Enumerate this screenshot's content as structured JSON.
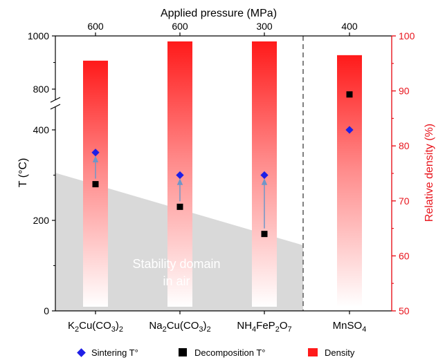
{
  "chart_data": {
    "type": "bar",
    "top_axis_title": "Applied pressure (MPa)",
    "left_axis_title": "T (°C)",
    "right_axis_title": "Relative density (%)",
    "categories": [
      "K2Cu(CO3)2",
      "Na2Cu(CO3)2",
      "NH4FeP2O7",
      "MnSO4"
    ],
    "category_labels": [
      [
        {
          "t": "K"
        },
        {
          "t": "2",
          "sub": true
        },
        {
          "t": "Cu(CO"
        },
        {
          "t": "3",
          "sub": true
        },
        {
          "t": ")"
        },
        {
          "t": "2",
          "sub": true
        }
      ],
      [
        {
          "t": "Na"
        },
        {
          "t": "2",
          "sub": true
        },
        {
          "t": "Cu(CO"
        },
        {
          "t": "3",
          "sub": true
        },
        {
          "t": ")"
        },
        {
          "t": "2",
          "sub": true
        }
      ],
      [
        {
          "t": "NH"
        },
        {
          "t": "4",
          "sub": true
        },
        {
          "t": "FeP"
        },
        {
          "t": "2",
          "sub": true
        },
        {
          "t": "O"
        },
        {
          "t": "7",
          "sub": true
        }
      ],
      [
        {
          "t": "MnSO"
        },
        {
          "t": "4",
          "sub": true
        }
      ]
    ],
    "pressure_labels": [
      "600",
      "600",
      "300",
      "400"
    ],
    "left_ticks": [
      0,
      200,
      400,
      800,
      1000
    ],
    "left_axis_break": [
      400,
      800
    ],
    "right_ticks": [
      50,
      60,
      70,
      80,
      90,
      100
    ],
    "right_ylim": [
      50,
      100
    ],
    "series": [
      {
        "name": "Sintering T°",
        "marker": "diamond",
        "color": "#1f1fe6",
        "values": [
          350,
          300,
          300,
          400
        ]
      },
      {
        "name": "Decomposition T°",
        "marker": "square",
        "color": "#000000",
        "values": [
          280,
          230,
          170,
          780
        ]
      },
      {
        "name": "Density",
        "marker": "bar",
        "color": "#ff1a1a",
        "values": [
          95.5,
          99,
          99,
          96.5
        ]
      }
    ],
    "stability_region": {
      "label_line1": "Stability domain",
      "label_line2": "in air",
      "left_T": 305,
      "right_T": 145
    },
    "colors": {
      "bar": "#ff1a1a",
      "arrow": "#6f96c8",
      "stability": "#d9d9d9",
      "divider": "#808080",
      "right_axis": "#e8141c"
    }
  }
}
